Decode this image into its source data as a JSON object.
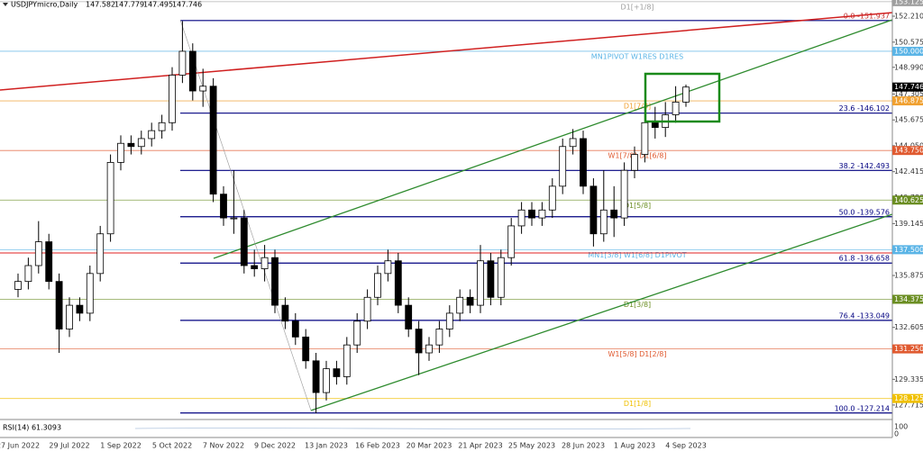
{
  "chart_data": {
    "type": "candlestick",
    "symbol": "USDJPYmicro,Daily",
    "ohlc_header": [
      147.582,
      147.779,
      147.495,
      147.746
    ],
    "categories": [
      "27 Jun 2022",
      null,
      null,
      null,
      null,
      "29 Jul 2022",
      null,
      null,
      null,
      null,
      "1 Sep 2022",
      null,
      null,
      null,
      null,
      "5 Oct 2022",
      null,
      null,
      null,
      null,
      "7 Nov 2022",
      null,
      null,
      null,
      null,
      "9 Dec 2022",
      null,
      null,
      null,
      null,
      "13 Jan 2023",
      null,
      null,
      null,
      null,
      "16 Feb 2023",
      null,
      null,
      null,
      null,
      "20 Mar 2023",
      null,
      null,
      null,
      null,
      "21 Apr 2023",
      null,
      null,
      null,
      null,
      "25 May 2023",
      null,
      null,
      null,
      null,
      "28 Jun 2023",
      null,
      null,
      null,
      null,
      "1 Aug 2023",
      null,
      null,
      null,
      null,
      "4 Sep 2023"
    ],
    "open": [
      135,
      135.5,
      136.5,
      138,
      135.5,
      132.5,
      134,
      133.5,
      136,
      138.5,
      143,
      144.2,
      144,
      144.5,
      145,
      145.5,
      148.5,
      150,
      147.5,
      147.8,
      141,
      139.5,
      139.5,
      136.5,
      136.3,
      137,
      134,
      133,
      132,
      130.5,
      128.5,
      130,
      129.5,
      131.5,
      133,
      134.5,
      136,
      136.8,
      134,
      132.5,
      131,
      131.5,
      132.5,
      133.5,
      134.5,
      134,
      136.8,
      134.5,
      137,
      139,
      140,
      139.5,
      140,
      141.5,
      144,
      144.5,
      141.5,
      138.5,
      140,
      139.5,
      142.5,
      143.5,
      145.5,
      145.2,
      146,
      146.8
    ],
    "high": [
      136,
      137,
      139.3,
      138.5,
      136,
      134.5,
      134.5,
      136.5,
      139,
      143.5,
      144.7,
      144.7,
      145,
      145.5,
      146,
      149,
      151.9,
      150.5,
      148.9,
      148.3,
      141.5,
      142.5,
      140,
      137.5,
      137.8,
      137.5,
      134.5,
      133.5,
      132.5,
      131,
      130.5,
      130.5,
      132,
      133.5,
      135,
      136.5,
      137.5,
      137.3,
      134.5,
      133,
      132,
      133,
      134,
      135,
      135,
      137.8,
      137.3,
      137.5,
      139.5,
      140.5,
      140.5,
      140.5,
      142,
      144.5,
      145.1,
      145,
      142,
      142.5,
      141.5,
      143,
      144,
      146.5,
      146.5,
      146.8,
      147.8,
      147.9
    ],
    "low": [
      134.5,
      135,
      136,
      135,
      131,
      132,
      133,
      133,
      135.5,
      138,
      142.5,
      143.5,
      143.5,
      144,
      144.5,
      145,
      148,
      146.9,
      146.5,
      140.5,
      139,
      138.5,
      136,
      135.8,
      135.5,
      133.5,
      132.5,
      131.5,
      130,
      127.2,
      128,
      129,
      129,
      131,
      132.5,
      134,
      135.5,
      133.5,
      132,
      129.6,
      130.5,
      131,
      132,
      133,
      133.5,
      133.5,
      134,
      134,
      136.5,
      138.5,
      139,
      139,
      139.5,
      141,
      143.5,
      141,
      137.7,
      138,
      138.3,
      139,
      142,
      143,
      144.5,
      144.6,
      145.5,
      146.5
    ],
    "close": [
      135.5,
      136.5,
      138,
      135.5,
      132.5,
      134,
      133.5,
      136,
      138.5,
      143,
      144.2,
      144,
      144.5,
      145,
      145.5,
      148.5,
      150,
      147.5,
      147.8,
      141,
      139.5,
      139.5,
      136.5,
      136.3,
      137,
      134,
      133,
      132,
      130.5,
      128.5,
      130,
      129.5,
      131.5,
      133,
      134.5,
      136,
      136.8,
      134,
      132.5,
      131,
      131.5,
      132.5,
      133.5,
      134.5,
      134,
      136.8,
      134.5,
      137,
      139,
      140,
      139.5,
      140,
      141.5,
      144,
      144.5,
      141.5,
      138.5,
      140,
      139.5,
      142.5,
      143.5,
      145.5,
      145.2,
      146,
      146.8,
      147.746
    ],
    "ylim": [
      126.86,
      153.23
    ],
    "yticks": [
      {
        "value": 152.21,
        "label": "152.210"
      },
      150.575,
      {
        "value": 148.99,
        "label": "148.990"
      },
      147.305,
      145.675,
      {
        "value": 144.05,
        "label": "144.050"
      },
      142.415,
      {
        "value": 140.78,
        "label": "140.780"
      },
      139.145,
      135.875,
      132.605,
      129.335,
      127.715
    ],
    "levels": [
      {
        "text": "D1[+1/8]",
        "price": 153.125,
        "color": "#9e9e9e"
      },
      {
        "text": "MN1PIVOT W1RES D1RES",
        "price": {
          "value": 150,
          "label": "150.000"
        },
        "color": "#5ab4e6"
      },
      {
        "text": "D1[7/8]",
        "price": 146.875,
        "color": "#f0a030"
      },
      {
        "text": "W1[7/8] D1[6/8]",
        "price": {
          "value": 143.75,
          "label": "143.750"
        },
        "color": "#e05a30"
      },
      {
        "text": "D1[5/8]",
        "price": 140.625,
        "color": "#6b8e23"
      },
      {
        "text": "MN1[3/8] W1[6/8] D1PIVOT",
        "price": {
          "value": 137.5,
          "label": "137.500"
        },
        "color": "#5ab4e6"
      },
      {
        "text": "D1[3/8]",
        "price": 134.375,
        "color": "#6b8e23"
      },
      {
        "text": "W1[5/8] D1[2/8]",
        "price": {
          "value": 131.25,
          "label": "131.250"
        },
        "color": "#e05a30"
      },
      {
        "text": "D1[1/8]",
        "price": 128.125,
        "color": "#f0c000"
      }
    ],
    "fib": [
      {
        "text": "0.0 -151.937",
        "price": 151.937
      },
      {
        "text": "23.6 -146.102",
        "price": 146.102
      },
      {
        "text": "38.2 -142.493",
        "price": 142.493
      },
      {
        "text": "50.0 -139.576",
        "price": 139.576
      },
      {
        "text": "61.8 -136.658",
        "price": 136.658
      },
      {
        "text": "76.4 -133.049",
        "price": 133.049
      },
      {
        "text": "100.0 -127.214",
        "price": 127.214
      }
    ],
    "current_price": 147.746,
    "rsi_label": "RSI(14) 61.3093",
    "rsi_ticks": [
      100,
      0
    ]
  }
}
